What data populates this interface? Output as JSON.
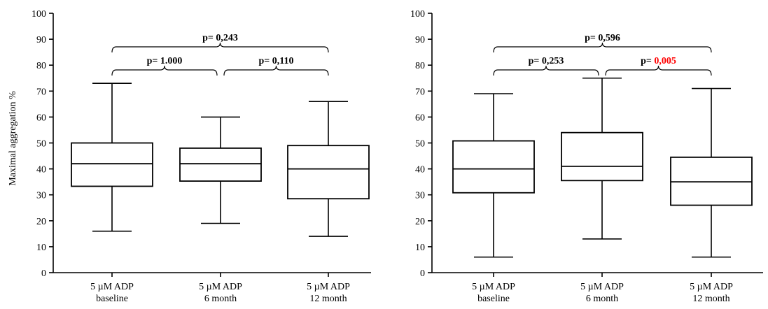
{
  "chart_data": [
    {
      "type": "box",
      "ylabel": "Maximal aggregation %",
      "ylim": [
        0,
        100
      ],
      "yticks": [
        0,
        10,
        20,
        30,
        40,
        50,
        60,
        70,
        80,
        90,
        100
      ],
      "categories": [
        [
          "5 µM ADP",
          "baseline"
        ],
        [
          "5 µM ADP",
          "6 month"
        ],
        [
          "5 µM ADP",
          "12 month"
        ]
      ],
      "boxes": [
        {
          "min": 16,
          "q1": 33.3,
          "median": 42,
          "q3": 50,
          "max": 73
        },
        {
          "min": 19,
          "q1": 35.3,
          "median": 42,
          "q3": 48,
          "max": 60
        },
        {
          "min": 14,
          "q1": 28.5,
          "median": 40,
          "q3": 49,
          "max": 66
        }
      ],
      "comparisons": [
        {
          "from": 0,
          "to": 2,
          "level": 2,
          "prefix": "p= ",
          "value": "0,243",
          "highlight": false
        },
        {
          "from": 0,
          "to": 1,
          "level": 1,
          "prefix": "p= ",
          "value": "1.000",
          "highlight": false
        },
        {
          "from": 1,
          "to": 2,
          "level": 1,
          "prefix": "p= ",
          "value": "0,110",
          "highlight": false
        }
      ]
    },
    {
      "type": "box",
      "ylabel": "",
      "ylim": [
        0,
        100
      ],
      "yticks": [
        0,
        10,
        20,
        30,
        40,
        50,
        60,
        70,
        80,
        90,
        100
      ],
      "categories": [
        [
          "5 µM ADP",
          "baseline"
        ],
        [
          "5 µM ADP",
          "6 month"
        ],
        [
          "5 µM ADP",
          "12 month"
        ]
      ],
      "boxes": [
        {
          "min": 6,
          "q1": 30.8,
          "median": 40,
          "q3": 50.8,
          "max": 69
        },
        {
          "min": 13,
          "q1": 35.5,
          "median": 41,
          "q3": 54,
          "max": 75
        },
        {
          "min": 6,
          "q1": 26,
          "median": 35,
          "q3": 44.5,
          "max": 71
        }
      ],
      "comparisons": [
        {
          "from": 0,
          "to": 2,
          "level": 2,
          "prefix": "p= ",
          "value": "0,596",
          "highlight": false
        },
        {
          "from": 0,
          "to": 1,
          "level": 1,
          "prefix": "p= ",
          "value": "0,253",
          "highlight": false
        },
        {
          "from": 1,
          "to": 2,
          "level": 1,
          "prefix": "p= ",
          "value": "0,005",
          "highlight": true
        }
      ]
    }
  ],
  "colors": {
    "axis": "#000000",
    "highlight": "#ff0000"
  }
}
